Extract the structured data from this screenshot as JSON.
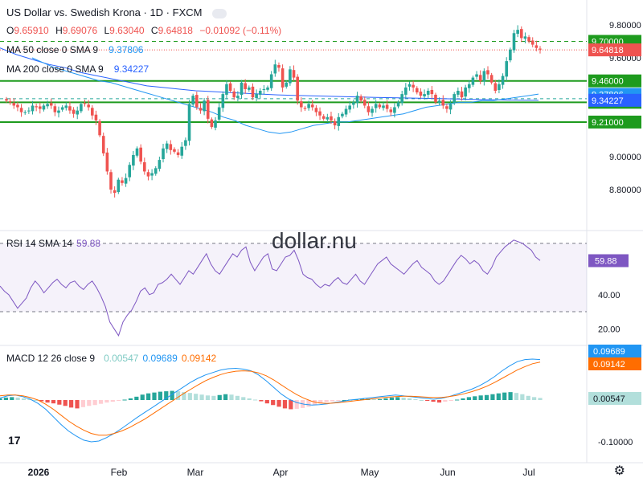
{
  "symbol": {
    "title": "US Dollar vs. Swedish Krona · 1D · FXCM",
    "ohlc": {
      "o_label": "O",
      "o": "9.65910",
      "h_label": "H",
      "h": "9.69076",
      "l_label": "L",
      "l": "9.63040",
      "c_label": "C",
      "c": "9.64818",
      "change": "−0.01092 (−0.11%)"
    }
  },
  "indicators": {
    "ma50": {
      "label": "MA 50 close 0 SMA 9",
      "value": "9.37806",
      "color": "#2196f3"
    },
    "ma200": {
      "label": "MA 200 close 0 SMA 9",
      "value": "9.34227",
      "color": "#2962ff"
    },
    "rsi": {
      "label": "RSI 14 SMA 14",
      "value": "59.88",
      "color": "#7e57c2"
    },
    "macd": {
      "label": "MACD 12 26 close 9",
      "hist": "0.00547",
      "macd": "0.09689",
      "signal": "0.09142",
      "hist_color": "#80cbc4",
      "macd_color": "#2196f3",
      "signal_color": "#ff6d00"
    }
  },
  "watermark": "dollar.nu",
  "colors": {
    "up": "#26a69a",
    "down": "#ef5350",
    "level": "#1e9b1e",
    "rsi_band": "#7e57c2"
  },
  "chart_data": [
    {
      "type": "candlestick",
      "title": "US Dollar vs. Swedish Krona · 1D · FXCM",
      "ylim": [
        8.7,
        9.85
      ],
      "x_ticks": [
        "2026",
        "Feb",
        "Mar",
        "Apr",
        "May",
        "Jun",
        "Jul"
      ],
      "y_ticks": [
        "9.80000",
        "9.60000",
        "9.40000",
        "9.20000",
        "9.00000",
        "8.80000"
      ],
      "close": [
        9.34,
        9.33,
        9.31,
        9.3,
        9.27,
        9.27,
        9.28,
        9.31,
        9.3,
        9.29,
        9.31,
        9.32,
        9.31,
        9.27,
        9.28,
        9.3,
        9.31,
        9.28,
        9.26,
        9.28,
        9.32,
        9.32,
        9.3,
        9.25,
        9.22,
        9.13,
        9.02,
        8.91,
        8.8,
        8.78,
        8.86,
        8.84,
        8.87,
        8.95,
        9.01,
        9.05,
        8.97,
        8.91,
        8.88,
        8.9,
        8.93,
        8.98,
        9.05,
        9.08,
        9.04,
        9.03,
        9.01,
        9.06,
        9.1,
        9.32,
        9.37,
        9.3,
        9.28,
        9.34,
        9.23,
        9.18,
        9.22,
        9.3,
        9.38,
        9.44,
        9.4,
        9.36,
        9.37,
        9.45,
        9.41,
        9.42,
        9.36,
        9.38,
        9.4,
        9.41,
        9.42,
        9.5,
        9.56,
        9.54,
        9.42,
        9.45,
        9.53,
        9.48,
        9.34,
        9.3,
        9.29,
        9.32,
        9.3,
        9.27,
        9.25,
        9.23,
        9.24,
        9.22,
        9.19,
        9.24,
        9.26,
        9.29,
        9.31,
        9.33,
        9.37,
        9.34,
        9.31,
        9.27,
        9.29,
        9.32,
        9.3,
        9.31,
        9.29,
        9.27,
        9.3,
        9.33,
        9.38,
        9.42,
        9.44,
        9.42,
        9.39,
        9.37,
        9.38,
        9.4,
        9.38,
        9.33,
        9.34,
        9.31,
        9.29,
        9.32,
        9.38,
        9.4,
        9.36,
        9.42,
        9.44,
        9.48,
        9.5,
        9.46,
        9.52,
        9.5,
        9.45,
        9.4,
        9.44,
        9.49,
        9.58,
        9.65,
        9.75,
        9.77,
        9.72,
        9.73,
        9.7,
        9.68,
        9.66,
        9.65
      ],
      "ma50": [
        9.6,
        9.57,
        9.54,
        9.52,
        9.5,
        9.48,
        9.46,
        9.45,
        9.43,
        9.41,
        9.39,
        9.37,
        9.35,
        9.33,
        9.31,
        9.29,
        9.27,
        9.24,
        9.22,
        9.19,
        9.17,
        9.15,
        9.14,
        9.15,
        9.17,
        9.19,
        9.2,
        9.21,
        9.21,
        9.22,
        9.23,
        9.24,
        9.25,
        9.26,
        9.28,
        9.3,
        9.31,
        9.32,
        9.33,
        9.33,
        9.34,
        9.34,
        9.35,
        9.36,
        9.37,
        9.38
      ],
      "ma200": [
        9.66,
        9.62,
        9.59,
        9.56,
        9.54,
        9.51,
        9.49,
        9.47,
        9.45,
        9.43,
        9.42,
        9.41,
        9.4,
        9.395,
        9.39,
        9.385,
        9.38,
        9.375,
        9.372,
        9.37,
        9.367,
        9.365,
        9.362,
        9.36,
        9.358,
        9.356,
        9.354,
        9.352,
        9.35,
        9.348,
        9.346,
        9.344,
        9.343,
        9.342
      ],
      "levels": [
        9.7,
        9.46,
        9.33,
        9.21
      ],
      "level_labels": [
        "9.70000",
        "9.46000",
        "9.33000",
        "9.21000"
      ],
      "last_price": "9.64818",
      "ma50_label": "9.37806",
      "ma200_label": "9.34227"
    },
    {
      "type": "line",
      "title": "RSI 14 SMA 14",
      "ylim": [
        10,
        80
      ],
      "y_ticks": [
        "40.00",
        "20.00"
      ],
      "band": [
        30,
        70
      ],
      "values": [
        45,
        42,
        40,
        36,
        32,
        35,
        38,
        44,
        48,
        45,
        41,
        44,
        47,
        49,
        46,
        44,
        47,
        48,
        45,
        43,
        46,
        48,
        44,
        39,
        33,
        24,
        20,
        16,
        24,
        28,
        31,
        36,
        42,
        44,
        40,
        41,
        46,
        47,
        49,
        52,
        49,
        46,
        50,
        54,
        52,
        56,
        60,
        64,
        58,
        54,
        52,
        56,
        60,
        64,
        62,
        66,
        68,
        59,
        54,
        58,
        62,
        64,
        55,
        54,
        58,
        62,
        63,
        66,
        60,
        52,
        50,
        49,
        46,
        44,
        46,
        45,
        48,
        50,
        47,
        46,
        49,
        52,
        48,
        46,
        50,
        54,
        58,
        60,
        62,
        58,
        56,
        54,
        52,
        55,
        58,
        60,
        56,
        54,
        52,
        48,
        46,
        48,
        52,
        56,
        60,
        63,
        61,
        58,
        60,
        58,
        54,
        52,
        56,
        62,
        65,
        68,
        70,
        72,
        71,
        70,
        68,
        66,
        62,
        60
      ],
      "last_label": "59.88"
    },
    {
      "type": "bar",
      "title": "MACD 12 26 close 9",
      "ylim": [
        -0.12,
        0.12
      ],
      "y_ticks": [
        "-0.10000"
      ],
      "histogram": [
        0.004,
        0.006,
        0.007,
        0.006,
        0.004,
        0.002,
        0.0,
        -0.003,
        -0.006,
        -0.008,
        -0.011,
        -0.014,
        -0.018,
        -0.02,
        -0.017,
        -0.014,
        -0.012,
        -0.009,
        -0.006,
        -0.004,
        -0.002,
        0.001,
        0.004,
        0.008,
        0.013,
        0.016,
        0.018,
        0.02,
        0.021,
        0.022,
        0.021,
        0.019,
        0.017,
        0.015,
        0.013,
        0.011,
        0.01,
        0.012,
        0.014,
        0.013,
        0.01,
        0.007,
        0.004,
        0.001,
        -0.003,
        -0.008,
        -0.012,
        -0.016,
        -0.02,
        -0.022,
        -0.021,
        -0.019,
        -0.016,
        -0.012,
        -0.008,
        -0.005,
        -0.003,
        -0.001,
        0.0,
        0.001,
        0.002,
        0.003,
        0.003,
        0.002,
        0.002,
        0.004,
        0.006,
        0.007,
        0.006,
        0.004,
        0.002,
        0.0,
        -0.002,
        -0.004,
        -0.006,
        -0.004,
        -0.002,
        0.001,
        0.004,
        0.007,
        0.009,
        0.011,
        0.012,
        0.014,
        0.016,
        0.018,
        0.019,
        0.017,
        0.014,
        0.01,
        0.007,
        0.005
      ],
      "macd": [
        0.005,
        0.01,
        0.012,
        0.008,
        0.002,
        -0.008,
        -0.022,
        -0.04,
        -0.058,
        -0.074,
        -0.086,
        -0.096,
        -0.1,
        -0.098,
        -0.09,
        -0.08,
        -0.068,
        -0.055,
        -0.042,
        -0.03,
        -0.018,
        -0.006,
        0.006,
        0.018,
        0.03,
        0.042,
        0.052,
        0.06,
        0.066,
        0.072,
        0.075,
        0.076,
        0.074,
        0.07,
        0.06,
        0.046,
        0.03,
        0.014,
        0.002,
        -0.006,
        -0.01,
        -0.012,
        -0.011,
        -0.009,
        -0.006,
        -0.003,
        0.0,
        0.002,
        0.004,
        0.006,
        0.008,
        0.01,
        0.012,
        0.01,
        0.008,
        0.006,
        0.004,
        0.002,
        0.004,
        0.008,
        0.014,
        0.02,
        0.026,
        0.034,
        0.044,
        0.056,
        0.07,
        0.082,
        0.092,
        0.097,
        0.098,
        0.097
      ],
      "signal": [
        0.01,
        0.012,
        0.012,
        0.01,
        0.006,
        0.0,
        -0.01,
        -0.022,
        -0.036,
        -0.05,
        -0.062,
        -0.072,
        -0.08,
        -0.084,
        -0.084,
        -0.08,
        -0.074,
        -0.066,
        -0.056,
        -0.046,
        -0.034,
        -0.022,
        -0.01,
        0.002,
        0.014,
        0.025,
        0.036,
        0.046,
        0.054,
        0.061,
        0.066,
        0.069,
        0.07,
        0.069,
        0.065,
        0.058,
        0.048,
        0.036,
        0.024,
        0.013,
        0.004,
        -0.003,
        -0.007,
        -0.008,
        -0.007,
        -0.005,
        -0.003,
        -0.001,
        0.001,
        0.003,
        0.005,
        0.007,
        0.008,
        0.009,
        0.009,
        0.008,
        0.007,
        0.006,
        0.006,
        0.008,
        0.011,
        0.015,
        0.02,
        0.026,
        0.033,
        0.042,
        0.052,
        0.062,
        0.072,
        0.08,
        0.087,
        0.091
      ],
      "macd_label": "0.09689",
      "signal_label": "0.09142",
      "hist_label": "0.00547"
    }
  ]
}
